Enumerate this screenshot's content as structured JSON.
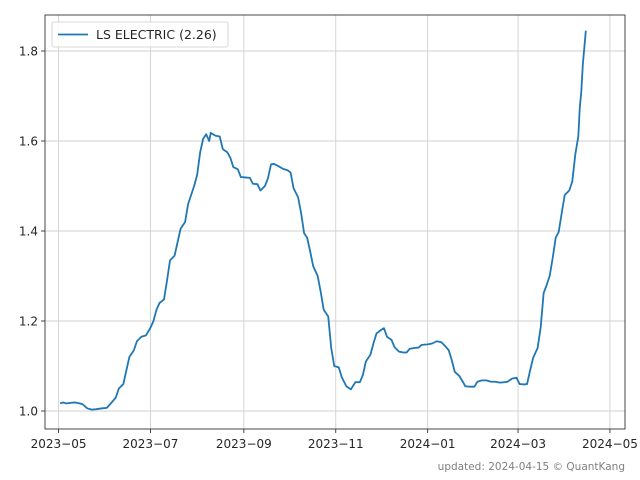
{
  "chart_data": {
    "type": "line",
    "title": "",
    "xlabel": "",
    "ylabel": "",
    "xlim": [
      "2023-04-22",
      "2024-05-11"
    ],
    "ylim": [
      0.96,
      1.88
    ],
    "x_ticks": [
      "2023-05-01",
      "2023-07-01",
      "2023-09-01",
      "2023-11-01",
      "2024-01-01",
      "2024-03-01",
      "2024-05-01"
    ],
    "x_tick_labels": [
      "2023−05",
      "2023−07",
      "2023−09",
      "2023−11",
      "2024−01",
      "2024−03",
      "2024−05"
    ],
    "y_ticks": [
      1.0,
      1.2,
      1.4,
      1.6,
      1.8
    ],
    "y_tick_labels": [
      "1.0",
      "1.2",
      "1.4",
      "1.6",
      "1.8"
    ],
    "grid": true,
    "legend_position": "top-left",
    "series": [
      {
        "name": "LS ELECTRIC (2.26)",
        "color": "#1f77b4",
        "points": [
          [
            "2023-05-02",
            1.017
          ],
          [
            "2023-05-04",
            1.019
          ],
          [
            "2023-05-06",
            1.017
          ],
          [
            "2023-05-09",
            1.018
          ],
          [
            "2023-05-12",
            1.019
          ],
          [
            "2023-05-15",
            1.017
          ],
          [
            "2023-05-17",
            1.015
          ],
          [
            "2023-05-20",
            1.006
          ],
          [
            "2023-05-23",
            1.003
          ],
          [
            "2023-05-26",
            1.004
          ],
          [
            "2023-05-30",
            1.006
          ],
          [
            "2023-06-02",
            1.007
          ],
          [
            "2023-06-05",
            1.018
          ],
          [
            "2023-06-08",
            1.03
          ],
          [
            "2023-06-10",
            1.05
          ],
          [
            "2023-06-13",
            1.06
          ],
          [
            "2023-06-15",
            1.09
          ],
          [
            "2023-06-17",
            1.12
          ],
          [
            "2023-06-20",
            1.135
          ],
          [
            "2023-06-22",
            1.155
          ],
          [
            "2023-06-25",
            1.165
          ],
          [
            "2023-06-28",
            1.168
          ],
          [
            "2023-07-01",
            1.185
          ],
          [
            "2023-07-03",
            1.2
          ],
          [
            "2023-07-05",
            1.225
          ],
          [
            "2023-07-07",
            1.24
          ],
          [
            "2023-07-10",
            1.248
          ],
          [
            "2023-07-12",
            1.29
          ],
          [
            "2023-07-14",
            1.335
          ],
          [
            "2023-07-17",
            1.345
          ],
          [
            "2023-07-19",
            1.375
          ],
          [
            "2023-07-21",
            1.405
          ],
          [
            "2023-07-24",
            1.42
          ],
          [
            "2023-07-26",
            1.46
          ],
          [
            "2023-07-28",
            1.48
          ],
          [
            "2023-07-30",
            1.5
          ],
          [
            "2023-08-01",
            1.525
          ],
          [
            "2023-08-03",
            1.575
          ],
          [
            "2023-08-05",
            1.605
          ],
          [
            "2023-08-07",
            1.615
          ],
          [
            "2023-08-09",
            1.6
          ],
          [
            "2023-08-10",
            1.618
          ],
          [
            "2023-08-13",
            1.612
          ],
          [
            "2023-08-16",
            1.61
          ],
          [
            "2023-08-18",
            1.582
          ],
          [
            "2023-08-21",
            1.575
          ],
          [
            "2023-08-23",
            1.563
          ],
          [
            "2023-08-25",
            1.542
          ],
          [
            "2023-08-28",
            1.537
          ],
          [
            "2023-08-30",
            1.52
          ],
          [
            "2023-09-02",
            1.519
          ],
          [
            "2023-09-05",
            1.518
          ],
          [
            "2023-09-07",
            1.505
          ],
          [
            "2023-09-10",
            1.504
          ],
          [
            "2023-09-12",
            1.49
          ],
          [
            "2023-09-15",
            1.5
          ],
          [
            "2023-09-17",
            1.517
          ],
          [
            "2023-09-19",
            1.548
          ],
          [
            "2023-09-21",
            1.549
          ],
          [
            "2023-09-24",
            1.544
          ],
          [
            "2023-09-27",
            1.538
          ],
          [
            "2023-09-30",
            1.535
          ],
          [
            "2023-10-02",
            1.53
          ],
          [
            "2023-10-04",
            1.495
          ],
          [
            "2023-10-07",
            1.475
          ],
          [
            "2023-10-09",
            1.44
          ],
          [
            "2023-10-11",
            1.395
          ],
          [
            "2023-10-13",
            1.385
          ],
          [
            "2023-10-15",
            1.355
          ],
          [
            "2023-10-17",
            1.322
          ],
          [
            "2023-10-20",
            1.3
          ],
          [
            "2023-10-22",
            1.265
          ],
          [
            "2023-10-24",
            1.225
          ],
          [
            "2023-10-27",
            1.21
          ],
          [
            "2023-10-29",
            1.14
          ],
          [
            "2023-10-31",
            1.1
          ],
          [
            "2023-11-03",
            1.097
          ],
          [
            "2023-11-05",
            1.075
          ],
          [
            "2023-11-08",
            1.055
          ],
          [
            "2023-11-11",
            1.048
          ],
          [
            "2023-11-14",
            1.064
          ],
          [
            "2023-11-17",
            1.064
          ],
          [
            "2023-11-19",
            1.08
          ],
          [
            "2023-11-21",
            1.11
          ],
          [
            "2023-11-24",
            1.125
          ],
          [
            "2023-11-26",
            1.15
          ],
          [
            "2023-11-28",
            1.172
          ],
          [
            "2023-12-01",
            1.18
          ],
          [
            "2023-12-03",
            1.184
          ],
          [
            "2023-12-05",
            1.165
          ],
          [
            "2023-12-08",
            1.158
          ],
          [
            "2023-12-10",
            1.142
          ],
          [
            "2023-12-13",
            1.132
          ],
          [
            "2023-12-16",
            1.13
          ],
          [
            "2023-12-18",
            1.13
          ],
          [
            "2023-12-20",
            1.138
          ],
          [
            "2023-12-23",
            1.14
          ],
          [
            "2023-12-26",
            1.141
          ],
          [
            "2023-12-28",
            1.147
          ],
          [
            "2024-01-01",
            1.148
          ],
          [
            "2024-01-04",
            1.15
          ],
          [
            "2024-01-07",
            1.155
          ],
          [
            "2024-01-10",
            1.153
          ],
          [
            "2024-01-13",
            1.143
          ],
          [
            "2024-01-15",
            1.135
          ],
          [
            "2024-01-17",
            1.113
          ],
          [
            "2024-01-19",
            1.087
          ],
          [
            "2024-01-22",
            1.078
          ],
          [
            "2024-01-24",
            1.067
          ],
          [
            "2024-01-26",
            1.055
          ],
          [
            "2024-01-29",
            1.054
          ],
          [
            "2024-02-01",
            1.054
          ],
          [
            "2024-02-03",
            1.065
          ],
          [
            "2024-02-06",
            1.068
          ],
          [
            "2024-02-09",
            1.068
          ],
          [
            "2024-02-12",
            1.065
          ],
          [
            "2024-02-15",
            1.065
          ],
          [
            "2024-02-18",
            1.063
          ],
          [
            "2024-02-21",
            1.064
          ],
          [
            "2024-02-23",
            1.065
          ],
          [
            "2024-02-26",
            1.072
          ],
          [
            "2024-02-29",
            1.074
          ],
          [
            "2024-03-02",
            1.06
          ],
          [
            "2024-03-05",
            1.059
          ],
          [
            "2024-03-07",
            1.06
          ],
          [
            "2024-03-09",
            1.09
          ],
          [
            "2024-03-11",
            1.118
          ],
          [
            "2024-03-14",
            1.14
          ],
          [
            "2024-03-16",
            1.185
          ],
          [
            "2024-03-18",
            1.262
          ],
          [
            "2024-03-20",
            1.28
          ],
          [
            "2024-03-22",
            1.3
          ],
          [
            "2024-03-24",
            1.34
          ],
          [
            "2024-03-26",
            1.385
          ],
          [
            "2024-03-28",
            1.398
          ],
          [
            "2024-03-30",
            1.44
          ],
          [
            "2024-04-01",
            1.48
          ],
          [
            "2024-04-04",
            1.49
          ],
          [
            "2024-04-06",
            1.51
          ],
          [
            "2024-04-08",
            1.57
          ],
          [
            "2024-04-10",
            1.61
          ],
          [
            "2024-04-11",
            1.675
          ],
          [
            "2024-04-12",
            1.71
          ],
          [
            "2024-04-13",
            1.77
          ],
          [
            "2024-04-15",
            1.845
          ]
        ]
      }
    ]
  },
  "footer": {
    "text": "updated: 2024-04-15 © QuantKang"
  }
}
